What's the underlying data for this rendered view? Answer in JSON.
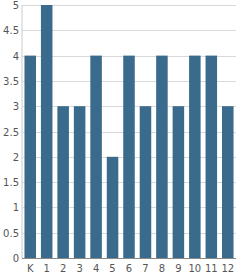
{
  "chart_data": {
    "type": "bar",
    "categories": [
      "K",
      "1",
      "2",
      "3",
      "4",
      "5",
      "6",
      "7",
      "8",
      "9",
      "10",
      "11",
      "12"
    ],
    "values": [
      4,
      5,
      3,
      3,
      4,
      2,
      4,
      3,
      4,
      3,
      4,
      4,
      3
    ],
    "color": "#3a6a8c",
    "ylim": [
      0,
      5
    ],
    "yticks": [
      0,
      0.5,
      1,
      1.5,
      2,
      2.5,
      3,
      3.5,
      4,
      4.5,
      5
    ],
    "grid": true
  }
}
